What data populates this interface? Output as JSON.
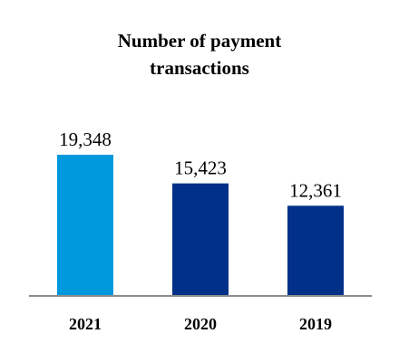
{
  "chart_data": {
    "type": "bar",
    "title_lines": [
      "Number of payment",
      "transactions"
    ],
    "categories": [
      "2021",
      "2020",
      "2019"
    ],
    "values": [
      19348,
      15423,
      12361
    ],
    "value_labels": [
      "19,348",
      "15,423",
      "12,361"
    ],
    "bar_colors": [
      "#0099DD",
      "#003087",
      "#003087"
    ],
    "axis_color": "#8C8C8C",
    "ylim": [
      0,
      23000
    ],
    "grid": false,
    "legend": "none"
  }
}
